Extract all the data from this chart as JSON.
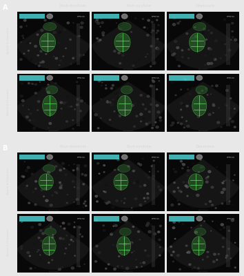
{
  "panel_A_label": "A",
  "panel_B_label": "B",
  "col_labels": [
    "End-diastole",
    "End-systole",
    "Diastasis"
  ],
  "row_labels_A": [
    "Apical 4-Chamber",
    "Apical 2-Chamber"
  ],
  "row_labels_B": [
    "Apical 4-Chamber",
    "Apical 2-Chamber"
  ],
  "bg_color": "#000000",
  "panel_bg": "#1a1a1a",
  "label_color": "#ffffff",
  "col_label_color": "#d8d8d8",
  "row_label_color": "#d8d8d8",
  "panel_border_color": "#555555",
  "outer_bg": "#e8e8e8",
  "cell_bg": "#111111",
  "green_overlay": "#2d7a2d",
  "teal_bar_color": "#4dcfcf",
  "panel_A_letter_color": "#ffffff",
  "panel_B_letter_color": "#ffffff",
  "figsize": [
    3.54,
    4.0
  ],
  "dpi": 100
}
